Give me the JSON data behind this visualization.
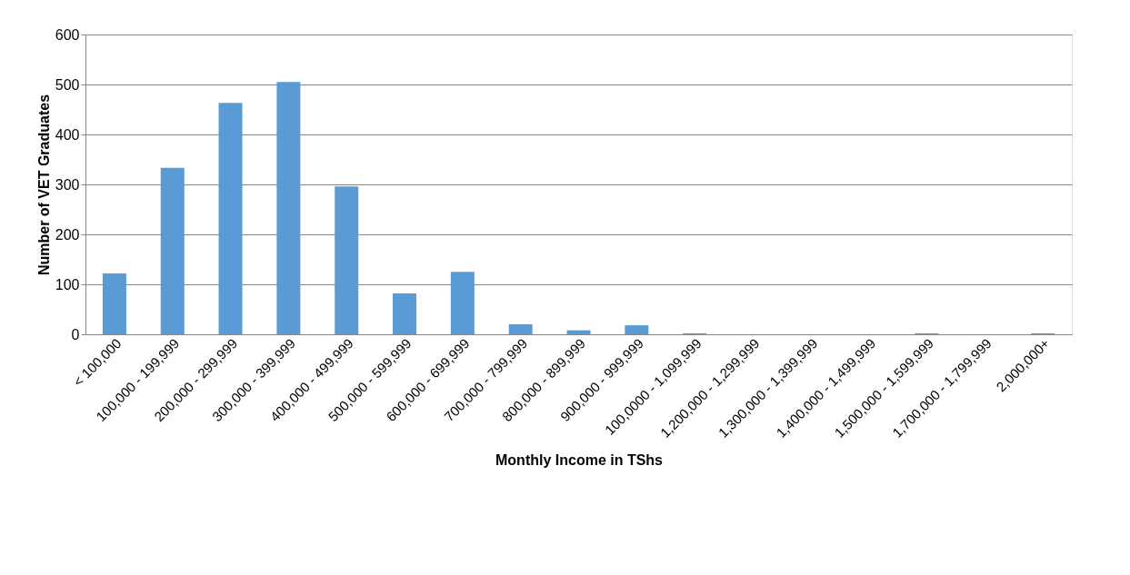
{
  "chart_data": {
    "type": "bar",
    "xlabel": "Monthly  Income in TShs",
    "ylabel": "Number of VET Graduates",
    "categories": [
      "< 100,000",
      "100,000 - 199,999",
      "200,000 - 299,999",
      "300,000 - 399,999",
      "400,000 - 499,999",
      "500,000 - 599,999",
      "600,000 - 699,999",
      "700,000 - 799,999",
      "800,000 - 899,999",
      "900,000 - 999,999",
      "100,0000 - 1,099,999",
      "1,200,000 - 1,299,999",
      "1,300,000 - 1,399,999",
      "1,400,000 - 1,499,999",
      "1,500,000 - 1,599,999",
      "1,700,000 - 1,799,999",
      "2,000,000+"
    ],
    "values": [
      122,
      333,
      463,
      505,
      296,
      82,
      125,
      20,
      8,
      18,
      2,
      0,
      0,
      0,
      2,
      0,
      2
    ],
    "color": "#5b9bd5",
    "ylim": [
      0,
      600
    ],
    "yticks": [
      0,
      100,
      200,
      300,
      400,
      500,
      600
    ],
    "grid": "y"
  }
}
